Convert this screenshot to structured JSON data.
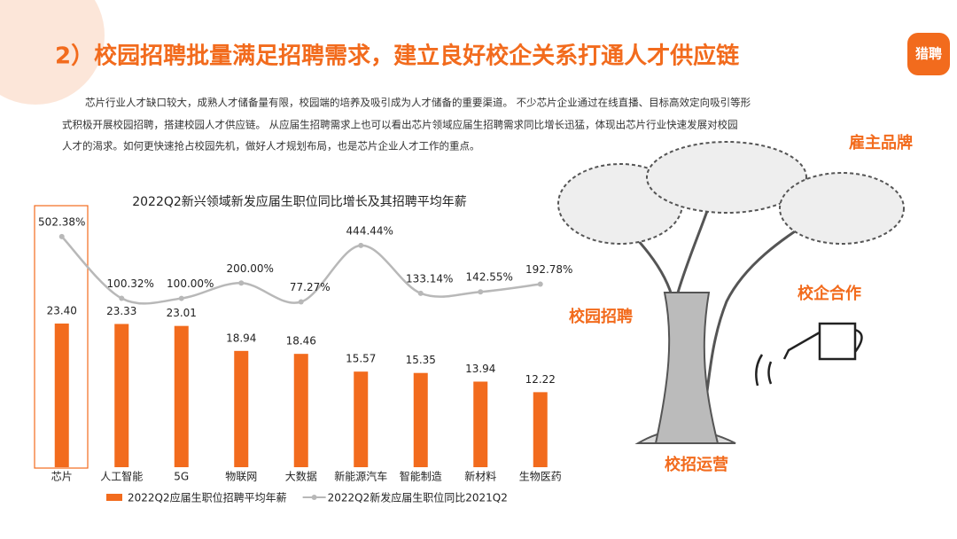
{
  "title": "2）校园招聘批量满足招聘需求，建立良好校企关系打通人才供应链",
  "logo": "猎聘",
  "intro": [
    "芯片行业人才缺口较大，成熟人才储备量有限，校园端的培养及吸引成为人才储备的重要渠道。 不少芯片企业通过在线直播、目标高效定向吸引等形",
    "式积极开展校园招聘，搭建校园人才供应链。 从应届生招聘需求上也可以看出芯片领域应届生招聘需求同比增长迅猛，体现出芯片行业快速发展对校园",
    "人才的渴求。如何更快速抢占校园先机，做好人才规划布局，也是芯片企业人才工作的重点。"
  ],
  "illustration_labels": [
    "雇主品牌",
    "校园招聘",
    "校企合作",
    "校招运营"
  ],
  "chart_data": {
    "type": "bar_line",
    "title": "2022Q2新兴领域新发应届生职位同比增长及其招聘平均年薪",
    "categories": [
      "芯片",
      "人工智能",
      "5G",
      "物联网",
      "大数据",
      "新能源汽车",
      "智能制造",
      "新材料",
      "生物医药"
    ],
    "series": [
      {
        "name": "2022Q2应届生职位招聘平均年薪",
        "type": "bar",
        "color": "#f26b1d",
        "values": [
          23.4,
          23.33,
          23.01,
          18.94,
          18.46,
          15.57,
          15.35,
          13.94,
          12.22
        ],
        "value_labels": [
          "23.40",
          "23.33",
          "23.01",
          "18.94",
          "18.46",
          "15.57",
          "15.35",
          "13.94",
          "12.22"
        ]
      },
      {
        "name": "2022Q2新发应届生职位同比2021Q2",
        "type": "line",
        "axis": "y2",
        "color": "#b8b8b8",
        "values": [
          502.38,
          100.32,
          100.0,
          200.0,
          77.27,
          444.44,
          133.14,
          142.55,
          192.78
        ],
        "value_labels": [
          "502.38%",
          "100.32%",
          "100.00%",
          "200.00%",
          "77.27%",
          "444.44%",
          "133.14%",
          "142.55%",
          "192.78%"
        ]
      }
    ],
    "ylim": [
      0,
      40
    ],
    "y2lim": [
      -1000,
      600
    ],
    "legend": "bottom"
  }
}
